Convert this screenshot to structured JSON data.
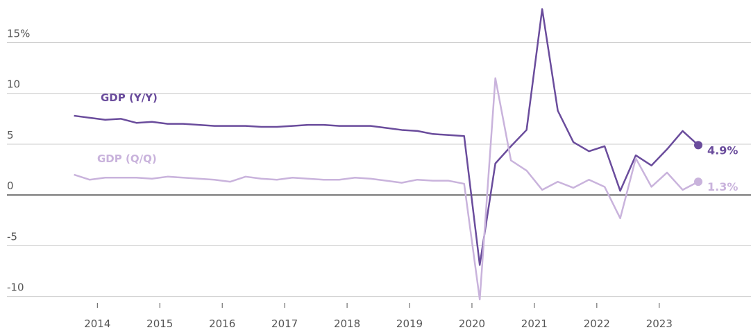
{
  "chart_data": {
    "type": "line",
    "x": [
      2013.625,
      2013.875,
      2014.125,
      2014.375,
      2014.625,
      2014.875,
      2015.125,
      2015.375,
      2015.625,
      2015.875,
      2016.125,
      2016.375,
      2016.625,
      2016.875,
      2017.125,
      2017.375,
      2017.625,
      2017.875,
      2018.125,
      2018.375,
      2018.625,
      2018.875,
      2019.125,
      2019.375,
      2019.625,
      2019.875,
      2020.125,
      2020.375,
      2020.625,
      2020.875,
      2021.125,
      2021.375,
      2021.625,
      2021.875,
      2022.125,
      2022.375,
      2022.625,
      2022.875,
      2023.125,
      2023.375,
      2023.625
    ],
    "series": [
      {
        "name": "GDP (Y/Y)",
        "color": "#6a4c9c",
        "values": [
          7.8,
          7.6,
          7.4,
          7.5,
          7.1,
          7.2,
          7.0,
          7.0,
          6.9,
          6.8,
          6.8,
          6.8,
          6.7,
          6.7,
          6.8,
          6.9,
          6.9,
          6.8,
          6.8,
          6.8,
          6.6,
          6.4,
          6.3,
          6.0,
          5.9,
          5.8,
          -6.9,
          3.1,
          4.8,
          6.4,
          18.3,
          8.3,
          5.2,
          4.3,
          4.8,
          0.4,
          3.9,
          2.9,
          4.5,
          6.3,
          4.9
        ],
        "value_labels": [
          null,
          null,
          null,
          null,
          null,
          null,
          null,
          null,
          null,
          null,
          null,
          null,
          null,
          null,
          null,
          null,
          null,
          null,
          null,
          null,
          null,
          null,
          null,
          null,
          null,
          null,
          null,
          null,
          null,
          null,
          null,
          null,
          null,
          null,
          null,
          null,
          null,
          null,
          null,
          null,
          "4.9%"
        ]
      },
      {
        "name": "GDP (Q/Q)",
        "color": "#c9b3dc",
        "values": [
          2.0,
          1.5,
          1.7,
          1.7,
          1.7,
          1.6,
          1.8,
          1.7,
          1.6,
          1.5,
          1.3,
          1.8,
          1.6,
          1.5,
          1.7,
          1.6,
          1.5,
          1.5,
          1.7,
          1.6,
          1.4,
          1.2,
          1.5,
          1.4,
          1.4,
          1.1,
          -10.3,
          11.5,
          3.4,
          2.4,
          0.5,
          1.3,
          0.7,
          1.5,
          0.8,
          -2.3,
          3.6,
          0.8,
          2.2,
          0.5,
          1.3
        ],
        "value_labels": [
          null,
          null,
          null,
          null,
          null,
          null,
          null,
          null,
          null,
          null,
          null,
          null,
          null,
          null,
          null,
          null,
          null,
          null,
          null,
          null,
          null,
          null,
          null,
          null,
          null,
          null,
          null,
          null,
          null,
          null,
          null,
          null,
          null,
          null,
          null,
          null,
          null,
          null,
          null,
          null,
          "1.3%"
        ]
      }
    ],
    "xlim": [
      2012.44,
      2024.47
    ],
    "xticks": [
      2014,
      2015,
      2016,
      2017,
      2018,
      2019,
      2020,
      2021,
      2022,
      2023
    ],
    "ylim": [
      -10.3,
      19.2
    ],
    "yticks": [
      {
        "value": 15,
        "label": "15%"
      },
      10,
      5,
      0,
      -5,
      -10
    ],
    "grid": true
  }
}
